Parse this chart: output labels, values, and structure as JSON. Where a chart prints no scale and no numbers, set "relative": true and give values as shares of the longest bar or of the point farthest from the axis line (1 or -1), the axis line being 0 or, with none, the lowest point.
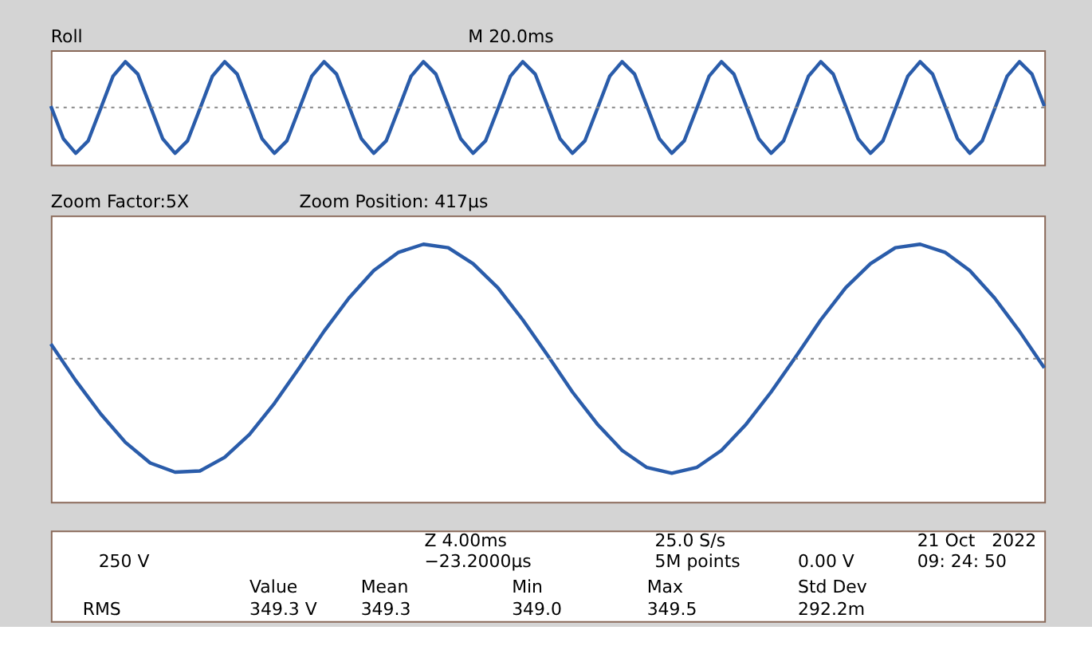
{
  "chart_data": [
    {
      "type": "line",
      "title": "Roll",
      "relative": true,
      "annotations": [
        "M 20.0ms"
      ],
      "ref_lines": [
        {
          "axis": "y",
          "value": 0,
          "color": "#888888",
          "line_style": "dotted"
        }
      ],
      "categories": [
        null,
        null,
        null,
        null,
        null,
        null,
        null,
        null,
        null,
        null,
        null,
        null,
        null,
        null,
        null,
        null,
        null,
        null,
        null,
        null,
        null,
        null,
        null,
        null,
        null,
        null,
        null,
        null,
        null,
        null,
        null,
        null,
        null,
        null,
        null,
        null,
        null,
        null,
        null,
        null,
        null,
        null,
        null,
        null,
        null,
        null,
        null,
        null,
        null,
        null,
        null,
        null,
        null,
        null,
        null,
        null,
        null,
        null,
        null,
        null,
        null,
        null,
        null,
        null,
        null,
        null,
        null,
        null,
        null,
        null,
        null,
        null,
        null,
        null,
        null,
        null,
        null,
        null,
        null,
        null,
        null
      ],
      "series": [
        {
          "color": "#2a5caa",
          "values": [
            0.03,
            -0.68,
            -1,
            -0.73,
            -0.03,
            0.68,
            1,
            0.73,
            0.03,
            -0.68,
            -1,
            -0.73,
            -0.03,
            0.68,
            1,
            0.73,
            0.03,
            -0.68,
            -1,
            -0.73,
            -0.03,
            0.68,
            1,
            0.73,
            0.03,
            -0.68,
            -1,
            -0.73,
            -0.03,
            0.68,
            1,
            0.73,
            0.03,
            -0.68,
            -1,
            -0.73,
            -0.03,
            0.68,
            1,
            0.73,
            0.03,
            -0.68,
            -1,
            -0.73,
            -0.03,
            0.68,
            1,
            0.73,
            0.03,
            -0.68,
            -1,
            -0.73,
            -0.03,
            0.68,
            1,
            0.73,
            0.03,
            -0.68,
            -1,
            -0.73,
            -0.03,
            0.68,
            1,
            0.73,
            0.03,
            -0.68,
            -1,
            -0.73,
            -0.03,
            0.68,
            1,
            0.73,
            0.03,
            -0.68,
            -1,
            -0.73,
            -0.03,
            0.68,
            1,
            0.73,
            0.03
          ]
        }
      ]
    },
    {
      "type": "line",
      "title": "Zoom Factor:5X",
      "relative": true,
      "annotations": [
        "Zoom Position: 417µs"
      ],
      "ref_lines": [
        {
          "axis": "y",
          "value": 0,
          "color": "#888888",
          "line_style": "dotted"
        }
      ],
      "categories": [
        null,
        null,
        null,
        null,
        null,
        null,
        null,
        null,
        null,
        null,
        null,
        null,
        null,
        null,
        null,
        null,
        null,
        null,
        null,
        null,
        null,
        null,
        null,
        null,
        null,
        null,
        null,
        null,
        null,
        null,
        null,
        null,
        null,
        null,
        null,
        null,
        null,
        null,
        null,
        null,
        null
      ],
      "series": [
        {
          "color": "#2a5caa",
          "values": [
            0.13,
            -0.19,
            -0.48,
            -0.73,
            -0.91,
            -0.99,
            -0.98,
            -0.86,
            -0.66,
            -0.39,
            -0.08,
            0.24,
            0.53,
            0.77,
            0.93,
            1.0,
            0.97,
            0.83,
            0.62,
            0.34,
            0.03,
            -0.29,
            -0.57,
            -0.8,
            -0.95,
            -1.0,
            -0.95,
            -0.8,
            -0.57,
            -0.29,
            0.02,
            0.34,
            0.62,
            0.83,
            0.97,
            1.0,
            0.93,
            0.77,
            0.53,
            0.24,
            -0.08
          ]
        }
      ]
    },
    {
      "type": "other",
      "annotations": [
        "250 V",
        "Z 4.00ms",
        "−23.2000µs",
        "25.0 S/s",
        "5M points",
        "0.00 V",
        "21 Oct",
        "2022",
        "09: 24: 50",
        "Value",
        "Mean",
        "Min",
        "Max",
        "Std Dev",
        "RMS",
        "349.3 V",
        "349.3",
        "349.0",
        "349.5",
        "292.2m"
      ]
    }
  ]
}
